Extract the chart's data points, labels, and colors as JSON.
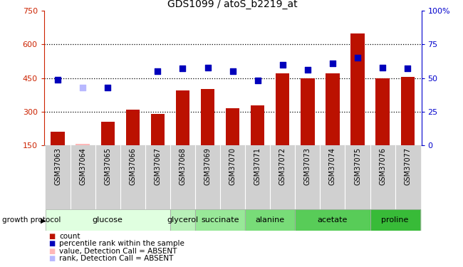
{
  "title": "GDS1099 / atoS_b2219_at",
  "samples": [
    "GSM37063",
    "GSM37064",
    "GSM37065",
    "GSM37066",
    "GSM37067",
    "GSM37068",
    "GSM37069",
    "GSM37070",
    "GSM37071",
    "GSM37072",
    "GSM37073",
    "GSM37074",
    "GSM37075",
    "GSM37076",
    "GSM37077"
  ],
  "counts": [
    210,
    158,
    255,
    310,
    290,
    395,
    400,
    315,
    330,
    470,
    450,
    470,
    650,
    450,
    455
  ],
  "count_absent": [
    false,
    true,
    false,
    false,
    false,
    false,
    false,
    false,
    false,
    false,
    false,
    false,
    false,
    false,
    false
  ],
  "percentile_ranks": [
    49,
    null,
    43,
    null,
    55,
    57,
    58,
    55,
    48,
    60,
    56,
    61,
    65,
    58,
    57
  ],
  "absent_rank_values": [
    null,
    43,
    null,
    null,
    null,
    null,
    null,
    null,
    null,
    null,
    null,
    null,
    null,
    null,
    null
  ],
  "groups": [
    {
      "label": "glucose",
      "start": 0,
      "end": 4,
      "color": "#e0ffe0"
    },
    {
      "label": "glycerol",
      "start": 5,
      "end": 5,
      "color": "#b8f0b8"
    },
    {
      "label": "succinate",
      "start": 6,
      "end": 7,
      "color": "#98e898"
    },
    {
      "label": "alanine",
      "start": 8,
      "end": 9,
      "color": "#78dc78"
    },
    {
      "label": "acetate",
      "start": 10,
      "end": 12,
      "color": "#58cc58"
    },
    {
      "label": "proline",
      "start": 13,
      "end": 14,
      "color": "#38bb38"
    }
  ],
  "ylim_left": [
    150,
    750
  ],
  "ylim_right": [
    0,
    100
  ],
  "bar_color_normal": "#bb1100",
  "bar_color_absent": "#ffb8b8",
  "dot_color_normal": "#0000bb",
  "dot_color_absent": "#b8b8ff",
  "left_tick_color": "#cc2200",
  "right_tick_color": "#0000cc",
  "sample_bg_color": "#d0d0d0",
  "legend_items": [
    {
      "color": "#bb1100",
      "label": "count"
    },
    {
      "color": "#0000bb",
      "label": "percentile rank within the sample"
    },
    {
      "color": "#ffb8b8",
      "label": "value, Detection Call = ABSENT"
    },
    {
      "color": "#b8b8ff",
      "label": "rank, Detection Call = ABSENT"
    }
  ]
}
